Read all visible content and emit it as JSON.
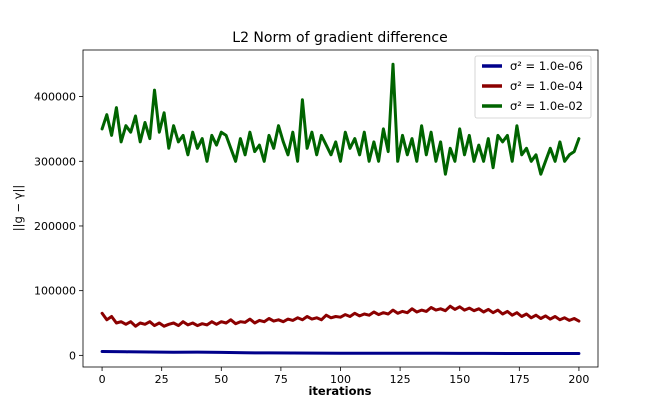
{
  "chart_data": {
    "type": "line",
    "title": "L2 Norm of gradient difference",
    "xlabel": "iterations",
    "ylabel": "||g − γ||",
    "xlim": [
      -8,
      208
    ],
    "ylim": [
      -18000,
      472000
    ],
    "xticks": [
      0,
      25,
      50,
      75,
      100,
      125,
      150,
      175,
      200
    ],
    "yticks": [
      0,
      100000,
      200000,
      300000,
      400000
    ],
    "grid": false,
    "legend_position": "top-right",
    "series": [
      {
        "name": "σ² = 1.0e-06",
        "color": "#00008b",
        "x": [
          0,
          10,
          20,
          30,
          40,
          50,
          60,
          70,
          80,
          90,
          100,
          110,
          120,
          130,
          140,
          150,
          160,
          170,
          180,
          190,
          200
        ],
        "y": [
          6000,
          5500,
          5200,
          4700,
          5000,
          4500,
          4000,
          3800,
          3600,
          3500,
          3400,
          3300,
          3200,
          3200,
          3100,
          3000,
          3000,
          2900,
          2900,
          2800,
          2800
        ]
      },
      {
        "name": "σ² = 1.0e-04",
        "color": "#8b0000",
        "x": [
          0,
          2,
          4,
          6,
          8,
          10,
          12,
          14,
          16,
          18,
          20,
          22,
          24,
          26,
          28,
          30,
          32,
          34,
          36,
          38,
          40,
          42,
          44,
          46,
          48,
          50,
          52,
          54,
          56,
          58,
          60,
          62,
          64,
          66,
          68,
          70,
          72,
          74,
          76,
          78,
          80,
          82,
          84,
          86,
          88,
          90,
          92,
          94,
          96,
          98,
          100,
          102,
          104,
          106,
          108,
          110,
          112,
          114,
          116,
          118,
          120,
          122,
          124,
          126,
          128,
          130,
          132,
          134,
          136,
          138,
          140,
          142,
          144,
          146,
          148,
          150,
          152,
          154,
          156,
          158,
          160,
          162,
          164,
          166,
          168,
          170,
          172,
          174,
          176,
          178,
          180,
          182,
          184,
          186,
          188,
          190,
          192,
          194,
          196,
          198,
          200
        ],
        "y": [
          65000,
          55000,
          60000,
          50000,
          52000,
          48000,
          52000,
          45000,
          50000,
          48000,
          52000,
          46000,
          50000,
          45000,
          48000,
          50000,
          46000,
          52000,
          47000,
          50000,
          46000,
          49000,
          47000,
          52000,
          48000,
          52000,
          50000,
          55000,
          49000,
          52000,
          51000,
          56000,
          50000,
          54000,
          52000,
          57000,
          53000,
          55000,
          52000,
          56000,
          54000,
          58000,
          55000,
          60000,
          56000,
          58000,
          55000,
          62000,
          58000,
          60000,
          59000,
          63000,
          60000,
          65000,
          61000,
          64000,
          62000,
          67000,
          63000,
          66000,
          64000,
          70000,
          65000,
          68000,
          66000,
          72000,
          67000,
          70000,
          68000,
          74000,
          70000,
          72000,
          69000,
          76000,
          71000,
          75000,
          70000,
          73000,
          69000,
          72000,
          67000,
          71000,
          66000,
          70000,
          64000,
          68000,
          62000,
          66000,
          60000,
          64000,
          58000,
          62000,
          57000,
          61000,
          56000,
          60000,
          55000,
          58000,
          54000,
          57000,
          53000
        ]
      },
      {
        "name": "σ² = 1.0e-02",
        "color": "#006400",
        "x": [
          0,
          2,
          4,
          6,
          8,
          10,
          12,
          14,
          16,
          18,
          20,
          22,
          24,
          26,
          28,
          30,
          32,
          34,
          36,
          38,
          40,
          42,
          44,
          46,
          48,
          50,
          52,
          54,
          56,
          58,
          60,
          62,
          64,
          66,
          68,
          70,
          72,
          74,
          76,
          78,
          80,
          82,
          84,
          86,
          88,
          90,
          92,
          94,
          96,
          98,
          100,
          102,
          104,
          106,
          108,
          110,
          112,
          114,
          116,
          118,
          120,
          122,
          124,
          126,
          128,
          130,
          132,
          134,
          136,
          138,
          140,
          142,
          144,
          146,
          148,
          150,
          152,
          154,
          156,
          158,
          160,
          162,
          164,
          166,
          168,
          170,
          172,
          174,
          176,
          178,
          180,
          182,
          184,
          186,
          188,
          190,
          192,
          194,
          196,
          198,
          200
        ],
        "y": [
          350000,
          372000,
          340000,
          383000,
          330000,
          355000,
          345000,
          370000,
          330000,
          360000,
          335000,
          410000,
          345000,
          375000,
          320000,
          355000,
          330000,
          340000,
          310000,
          345000,
          320000,
          335000,
          300000,
          340000,
          325000,
          345000,
          340000,
          320000,
          300000,
          335000,
          310000,
          345000,
          315000,
          325000,
          300000,
          340000,
          320000,
          355000,
          330000,
          310000,
          345000,
          300000,
          395000,
          320000,
          345000,
          310000,
          340000,
          325000,
          310000,
          330000,
          300000,
          345000,
          320000,
          335000,
          310000,
          345000,
          300000,
          330000,
          300000,
          350000,
          315000,
          450000,
          300000,
          340000,
          310000,
          335000,
          300000,
          355000,
          310000,
          345000,
          300000,
          330000,
          280000,
          320000,
          300000,
          350000,
          310000,
          340000,
          300000,
          325000,
          300000,
          335000,
          290000,
          340000,
          330000,
          340000,
          300000,
          355000,
          310000,
          320000,
          300000,
          310000,
          280000,
          300000,
          320000,
          300000,
          330000,
          300000,
          310000,
          315000,
          335000
        ]
      }
    ]
  }
}
